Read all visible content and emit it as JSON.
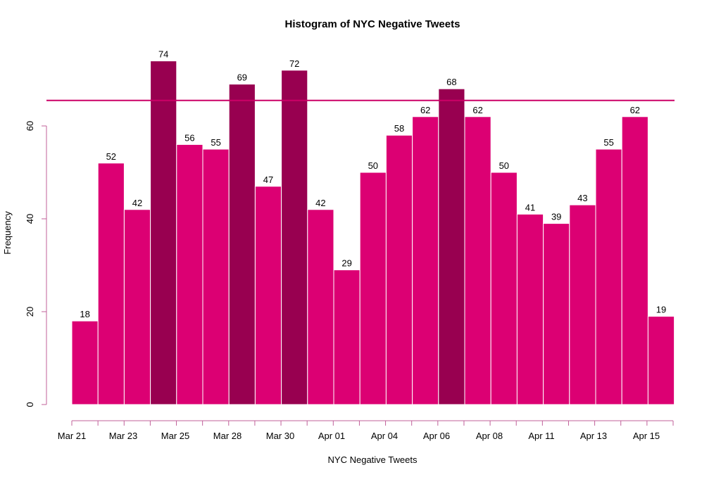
{
  "chart_data": {
    "type": "bar",
    "title": "Histogram of NYC Negative Tweets",
    "xlabel": "NYC Negative Tweets",
    "ylabel": "Frequency",
    "ylim": [
      0,
      80
    ],
    "y_ticks": [
      0,
      20,
      40,
      60
    ],
    "x_tick_labels": [
      "Mar 21",
      "Mar 23",
      "Mar 25",
      "Mar 28",
      "Mar 30",
      "Apr 01",
      "Apr 04",
      "Apr 06",
      "Apr 08",
      "Apr 11",
      "Apr 13",
      "Apr 15"
    ],
    "values": [
      18,
      52,
      42,
      74,
      56,
      55,
      69,
      47,
      72,
      42,
      29,
      50,
      58,
      62,
      68,
      62,
      50,
      41,
      39,
      43,
      55,
      62,
      19
    ],
    "threshold_line": 65.5,
    "grid": false,
    "colors": {
      "normal": "#dc0073",
      "above_threshold": "#980050",
      "threshold_line": "#cc0066",
      "axis": "#c0609a",
      "bar_border": "#ffffff"
    }
  }
}
